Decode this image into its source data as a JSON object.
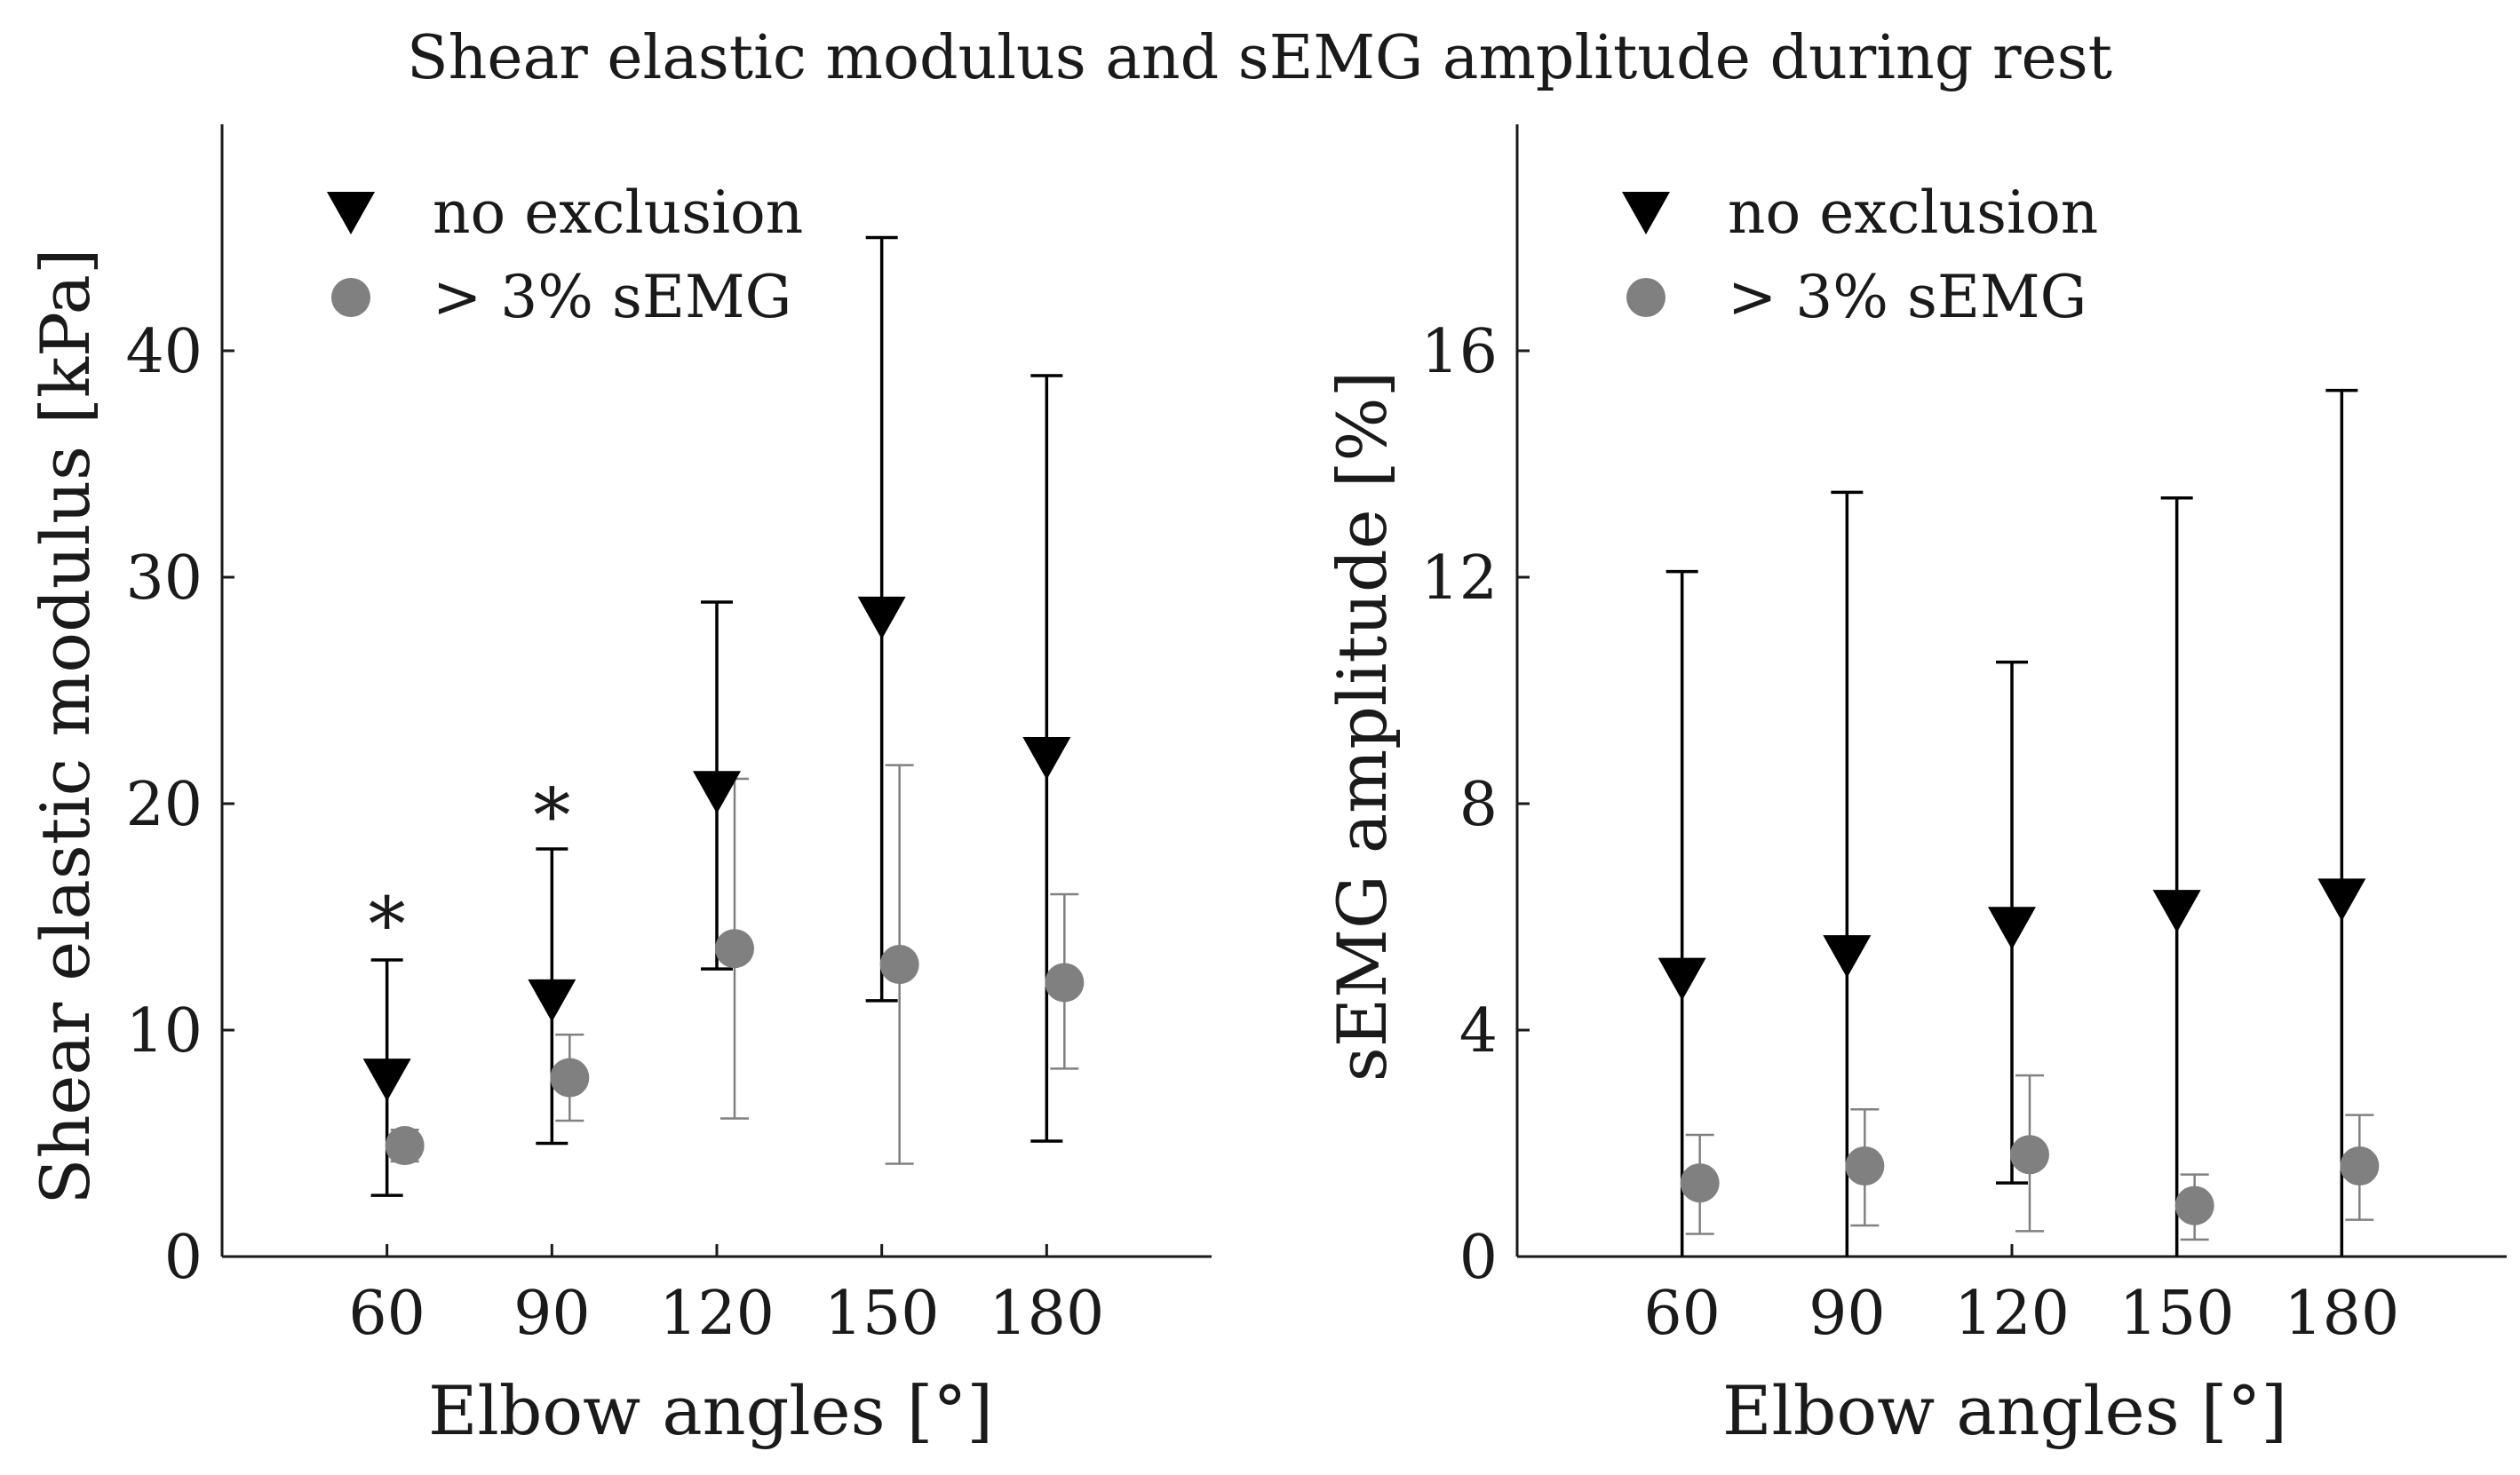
{
  "figure_title": "Shear elastic modulus and sEMG amplitude during rest",
  "colors": {
    "no_exclusion": "#000000",
    "sEMG_excluded": "#808080",
    "axis": "#1a1a1a"
  },
  "chart_data": [
    {
      "type": "scatter",
      "panel": "left",
      "xlabel": "Elbow angles [°]",
      "ylabel": "Shear elastic modulus [kPa]",
      "categories": [
        "60",
        "90",
        "120",
        "150",
        "180"
      ],
      "x_range": [
        30,
        210
      ],
      "yticks": [
        0,
        10,
        20,
        30,
        40
      ],
      "ylim": [
        0,
        50
      ],
      "legend": {
        "location": "top-left",
        "entries": [
          "no exclusion",
          "> 3% sEMG"
        ]
      },
      "annotations": [
        {
          "text": "*",
          "category": "60",
          "y": 15.5
        },
        {
          "text": "*",
          "category": "90",
          "y": 20.3
        }
      ],
      "series": [
        {
          "name": "no exclusion",
          "marker": "triangle-down",
          "color": "#000000",
          "values": [
            7.8,
            11.3,
            20.5,
            28.2,
            22.0
          ],
          "err_low": [
            2.7,
            5.0,
            12.7,
            11.3,
            5.1
          ],
          "err_high": [
            13.1,
            18.0,
            28.9,
            45.0,
            38.9
          ]
        },
        {
          "name": "> 3% sEMG",
          "marker": "circle",
          "color": "#808080",
          "values": [
            4.9,
            7.9,
            13.6,
            12.9,
            12.1
          ],
          "err_low": [
            4.2,
            6.0,
            6.1,
            4.1,
            8.3
          ],
          "err_high": [
            5.6,
            9.8,
            21.1,
            21.7,
            16.0
          ]
        }
      ]
    },
    {
      "type": "scatter",
      "panel": "right",
      "xlabel": "Elbow angles [°]",
      "ylabel": "sEMG amplitude [%]",
      "categories": [
        "60",
        "90",
        "120",
        "150",
        "180"
      ],
      "x_range": [
        30,
        210
      ],
      "yticks": [
        0,
        4,
        8,
        12,
        16
      ],
      "ylim": [
        0,
        20
      ],
      "legend": {
        "location": "top-left",
        "entries": [
          "no exclusion",
          "> 3% sEMG"
        ]
      },
      "annotations": [],
      "series": [
        {
          "name": "no exclusion",
          "marker": "triangle-down",
          "color": "#000000",
          "values": [
            4.9,
            5.3,
            5.8,
            6.1,
            6.3
          ],
          "err_low": [
            0,
            0,
            1.3,
            0,
            0
          ],
          "err_high": [
            12.1,
            13.5,
            10.5,
            13.4,
            15.3
          ]
        },
        {
          "name": "> 3% sEMG",
          "marker": "circle",
          "color": "#808080",
          "values": [
            1.3,
            1.6,
            1.8,
            0.9,
            1.6
          ],
          "err_low": [
            0.4,
            0.55,
            0.45,
            0.3,
            0.65
          ],
          "err_high": [
            2.15,
            2.6,
            3.2,
            1.45,
            2.5
          ]
        }
      ]
    }
  ]
}
